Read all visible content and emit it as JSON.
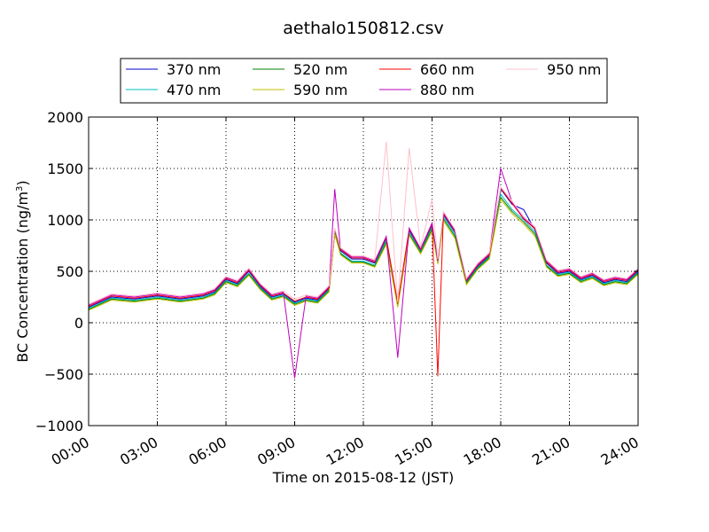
{
  "chart_data": {
    "type": "line",
    "title": "aethalo150812.csv",
    "xlabel": "Time on 2015-08-12 (JST)",
    "ylabel": "BC Concentration (ng/m",
    "ylabel_sup": "3",
    "ylabel_end": ")",
    "xlim": [
      "00:00",
      "24:00"
    ],
    "ylim": [
      -1000,
      2000
    ],
    "xticks": [
      "00:00",
      "03:00",
      "06:00",
      "09:00",
      "12:00",
      "15:00",
      "18:00",
      "21:00",
      "24:00"
    ],
    "yticks": [
      2000,
      1500,
      1000,
      500,
      0,
      -500,
      -1000
    ],
    "grid": true,
    "legend_position": "top",
    "x": [
      "00:00",
      "01:00",
      "02:00",
      "03:00",
      "04:00",
      "05:00",
      "05:30",
      "06:00",
      "06:30",
      "07:00",
      "07:30",
      "08:00",
      "08:30",
      "09:00",
      "09:30",
      "10:00",
      "10:30",
      "10:45",
      "11:00",
      "11:30",
      "12:00",
      "12:30",
      "13:00",
      "13:30",
      "14:00",
      "14:30",
      "15:00",
      "15:15",
      "15:30",
      "16:00",
      "16:30",
      "17:00",
      "17:30",
      "18:00",
      "18:30",
      "19:00",
      "19:30",
      "20:00",
      "20:30",
      "21:00",
      "21:30",
      "22:00",
      "22:30",
      "23:00",
      "23:30",
      "24:00"
    ],
    "series": [
      {
        "name": "370 nm",
        "color": "#0000cc",
        "values": [
          150,
          250,
          230,
          260,
          230,
          260,
          300,
          420,
          380,
          500,
          350,
          250,
          280,
          200,
          240,
          220,
          330,
          900,
          700,
          620,
          620,
          580,
          820,
          180,
          900,
          700,
          950,
          600,
          1050,
          880,
          400,
          550,
          650,
          1300,
          1150,
          1100,
          900,
          580,
          480,
          500,
          420,
          460,
          390,
          420,
          400,
          500
        ]
      },
      {
        "name": "470 nm",
        "color": "#00bfbf",
        "values": [
          140,
          240,
          220,
          250,
          220,
          250,
          290,
          410,
          370,
          480,
          340,
          240,
          270,
          190,
          230,
          210,
          320,
          880,
          680,
          600,
          600,
          560,
          800,
          170,
          880,
          690,
          930,
          590,
          1030,
          860,
          390,
          540,
          640,
          1250,
          1100,
          1000,
          880,
          560,
          470,
          490,
          410,
          450,
          380,
          410,
          390,
          490
        ]
      },
      {
        "name": "520 nm",
        "color": "#007f00",
        "values": [
          130,
          230,
          210,
          240,
          210,
          240,
          280,
          400,
          360,
          470,
          330,
          230,
          260,
          180,
          220,
          200,
          310,
          870,
          670,
          590,
          590,
          550,
          780,
          160,
          860,
          680,
          910,
          580,
          1010,
          840,
          380,
          530,
          630,
          1220,
          1080,
          980,
          860,
          550,
          460,
          480,
          400,
          440,
          370,
          400,
          380,
          480
        ]
      },
      {
        "name": "590 nm",
        "color": "#bfbf00",
        "values": [
          120,
          220,
          200,
          230,
          200,
          230,
          270,
          390,
          350,
          460,
          320,
          220,
          250,
          170,
          210,
          190,
          300,
          860,
          660,
          580,
          580,
          540,
          760,
          150,
          850,
          670,
          890,
          570,
          990,
          820,
          370,
          520,
          620,
          1200,
          1060,
          960,
          840,
          540,
          450,
          470,
          390,
          430,
          360,
          390,
          370,
          470
        ]
      },
      {
        "name": "660 nm",
        "color": "#ff0000",
        "values": [
          160,
          260,
          240,
          270,
          240,
          270,
          310,
          430,
          390,
          510,
          360,
          260,
          290,
          210,
          250,
          230,
          340,
          910,
          710,
          630,
          630,
          590,
          830,
          190,
          910,
          710,
          960,
          -520,
          1060,
          890,
          410,
          560,
          660,
          1310,
          1160,
          1010,
          910,
          590,
          490,
          510,
          430,
          470,
          400,
          430,
          410,
          510
        ]
      },
      {
        "name": "880 nm",
        "color": "#bf00bf",
        "values": [
          170,
          270,
          250,
          280,
          250,
          280,
          320,
          440,
          400,
          520,
          370,
          270,
          300,
          -540,
          260,
          240,
          350,
          1300,
          720,
          640,
          640,
          600,
          840,
          -340,
          920,
          720,
          970,
          600,
          1070,
          900,
          420,
          570,
          670,
          1500,
          1170,
          1020,
          920,
          600,
          500,
          520,
          440,
          480,
          410,
          440,
          420,
          520
        ]
      },
      {
        "name": "950 nm",
        "color": "#ffc0cb",
        "values": [
          180,
          280,
          260,
          290,
          260,
          290,
          330,
          450,
          410,
          530,
          380,
          280,
          310,
          230,
          270,
          250,
          360,
          920,
          730,
          650,
          650,
          610,
          1760,
          200,
          1700,
          730,
          1200,
          620,
          1080,
          910,
          430,
          580,
          680,
          1320,
          1180,
          1030,
          930,
          610,
          510,
          530,
          450,
          490,
          420,
          450,
          430,
          530
        ]
      }
    ]
  }
}
